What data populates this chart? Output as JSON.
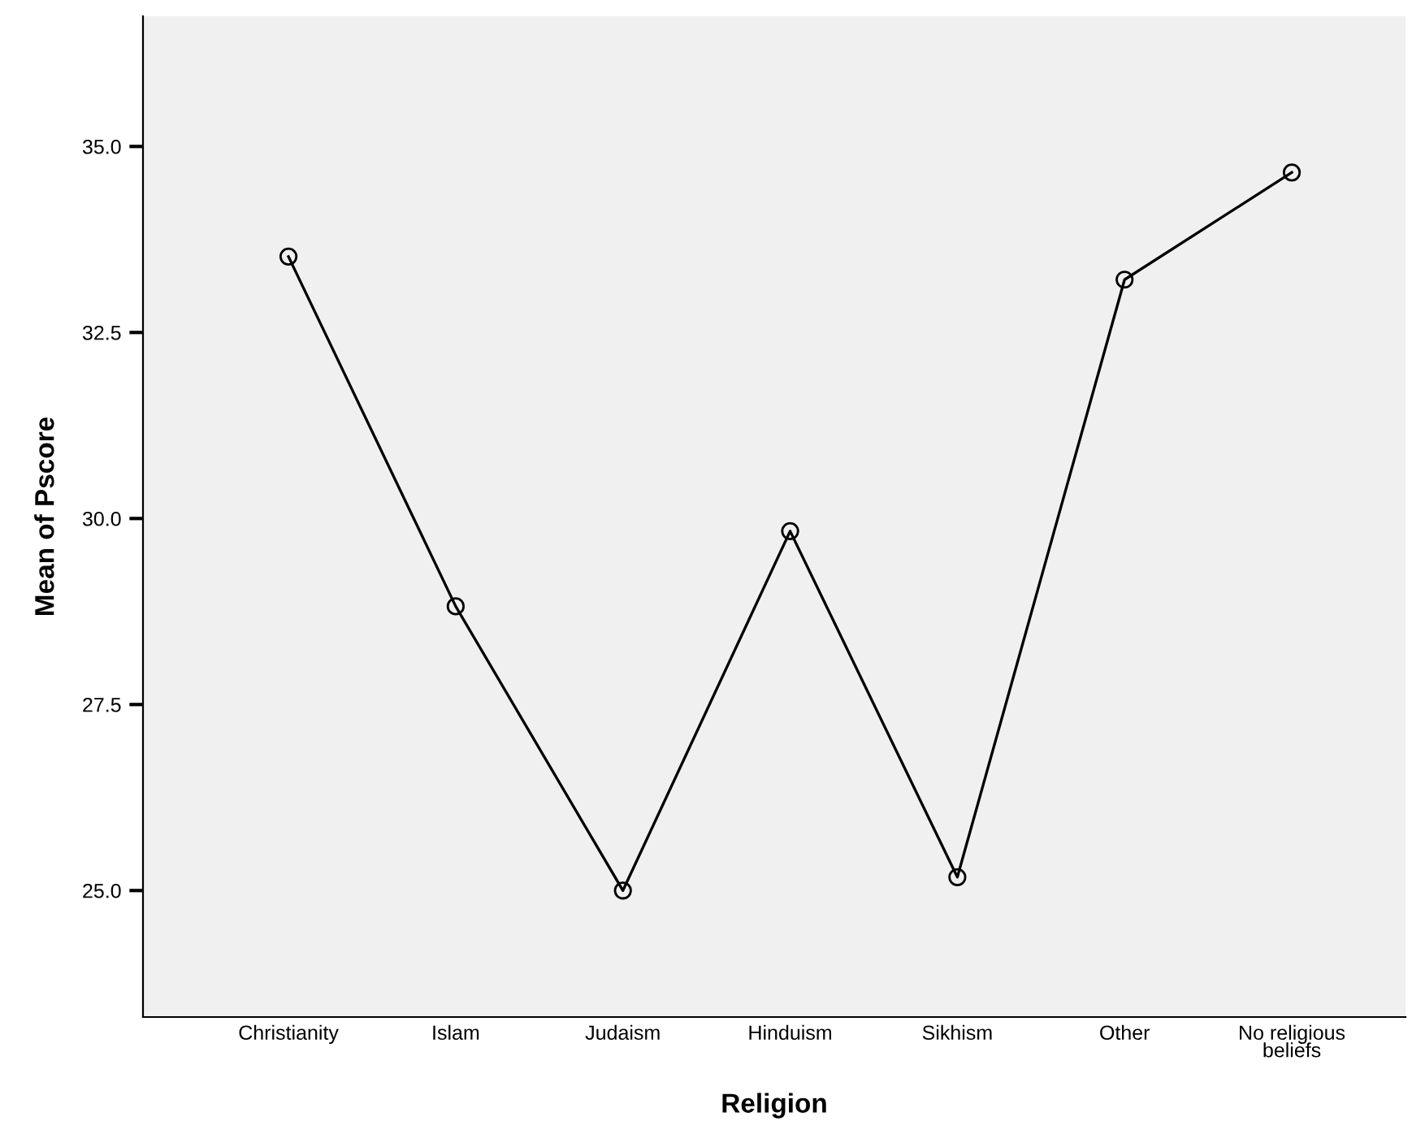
{
  "chart_data": {
    "type": "line",
    "xlabel": "Religion",
    "ylabel": "Mean of Pscore",
    "categories": [
      "Christianity",
      "Islam",
      "Judaism",
      "Hinduism",
      "Sikhism",
      "Other",
      "No religious\nbeliefs"
    ],
    "series": [
      {
        "color": "#000000",
        "values": [
          33.52,
          28.82,
          25.0,
          29.83,
          25.18,
          33.21,
          34.65
        ]
      }
    ],
    "ylim": [
      23.3,
      36.75
    ],
    "yticks": [
      {
        "value": 25,
        "label": "25.0"
      },
      {
        "value": 27.5,
        "label": "27.5"
      },
      {
        "value": 30,
        "label": "30.0"
      },
      {
        "value": 32.5,
        "label": "32.5"
      },
      {
        "value": 35,
        "label": "35.0"
      }
    ],
    "grid": false,
    "legend": false,
    "marker": "circle",
    "line_style": "solid"
  }
}
